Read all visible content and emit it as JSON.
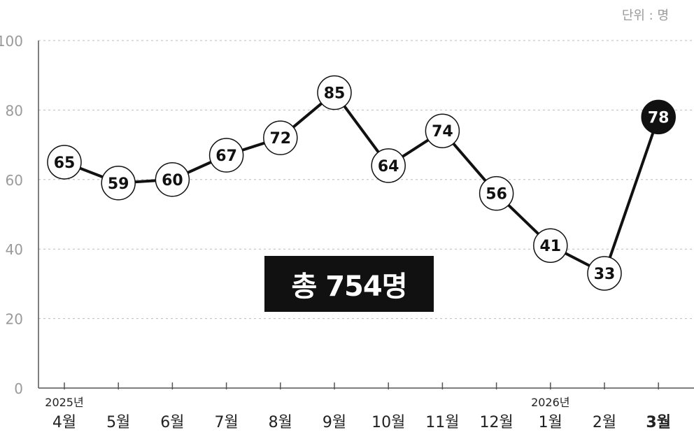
{
  "unit_label": "단위 : 명",
  "total_label": "총 754명",
  "colors": {
    "line": "#111111",
    "grid": "#bbbbbb",
    "axis_text": "#9a9a9a",
    "highlight": "#111111"
  },
  "chart_data": {
    "type": "line",
    "title": "",
    "xlabel": "",
    "ylabel": "",
    "ylim": [
      0,
      100
    ],
    "yticks": [
      0,
      20,
      40,
      60,
      80,
      100
    ],
    "grid": true,
    "categories": [
      "4월",
      "5월",
      "6월",
      "7월",
      "8월",
      "9월",
      "10월",
      "11월",
      "12월",
      "1월",
      "2월",
      "3월"
    ],
    "year_labels": [
      {
        "index": 0,
        "text": "2025년"
      },
      {
        "index": 9,
        "text": "2026년"
      }
    ],
    "series": [
      {
        "values": [
          65,
          59,
          60,
          67,
          72,
          85,
          64,
          74,
          56,
          41,
          33,
          78
        ]
      }
    ],
    "highlight_index": 11
  }
}
